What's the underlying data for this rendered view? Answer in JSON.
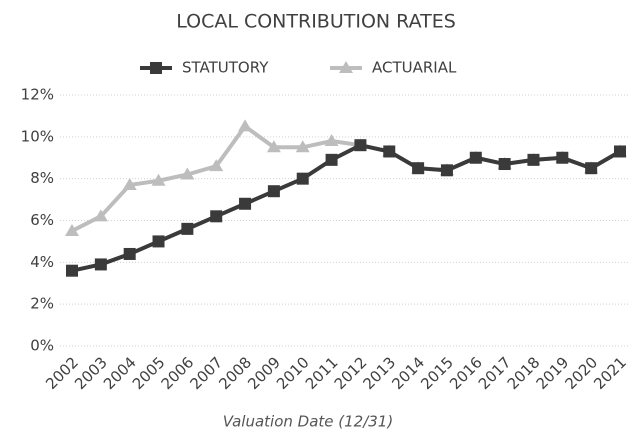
{
  "chart_data": {
    "type": "line",
    "title": "LOCAL CONTRIBUTION RATES",
    "x_label": "Valuation Date (12/31)",
    "categories": [
      "2002",
      "2003",
      "2004",
      "2005",
      "2006",
      "2007",
      "2008",
      "2009",
      "2010",
      "2011",
      "2012",
      "2013",
      "2014",
      "2015",
      "2016",
      "2017",
      "2018",
      "2019",
      "2020",
      "2021"
    ],
    "series": [
      {
        "name": "STATUTORY",
        "color": "#3a3a3a",
        "marker": "square",
        "values": [
          3.6,
          3.9,
          4.4,
          5.0,
          5.6,
          6.2,
          6.8,
          7.4,
          8.0,
          8.9,
          9.6,
          9.3,
          8.5,
          8.4,
          9.0,
          8.7,
          8.9,
          9.0,
          8.5,
          9.3
        ]
      },
      {
        "name": "ACTUARIAL",
        "color": "#bdbdbd",
        "marker": "triangle",
        "values": [
          5.5,
          6.2,
          7.7,
          7.9,
          8.2,
          8.6,
          10.5,
          9.5,
          9.5,
          9.8,
          9.6,
          9.3,
          8.5,
          8.4,
          9.0,
          8.7,
          8.9,
          9.0,
          8.5,
          9.3
        ]
      }
    ],
    "ylim": [
      0,
      12
    ],
    "yticks": [
      {
        "value": 0,
        "label": "0%"
      },
      {
        "value": 2,
        "label": "2%"
      },
      {
        "value": 4,
        "label": "4%"
      },
      {
        "value": 6,
        "label": "6%"
      },
      {
        "value": 8,
        "label": "8%"
      },
      {
        "value": 10,
        "label": "10%"
      },
      {
        "value": 12,
        "label": "12%"
      }
    ],
    "grid": true,
    "legend": "top"
  }
}
